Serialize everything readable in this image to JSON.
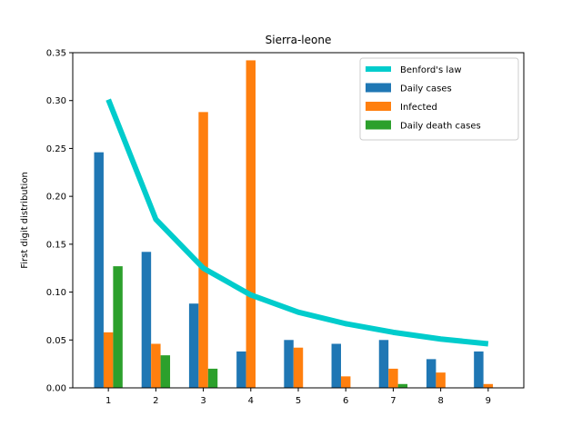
{
  "chart_data": {
    "type": "bar",
    "title": "Sierra-leone",
    "xlabel": "",
    "ylabel": "First digit distribution",
    "categories": [
      "1",
      "2",
      "3",
      "4",
      "5",
      "6",
      "7",
      "8",
      "9"
    ],
    "ylim": [
      0,
      0.35
    ],
    "yticks": [
      "0.00",
      "0.05",
      "0.10",
      "0.15",
      "0.20",
      "0.25",
      "0.30",
      "0.35"
    ],
    "grid": false,
    "legend_position": "top-right",
    "series": [
      {
        "name": "Daily cases",
        "kind": "bar",
        "color": "#1f77b4",
        "values": [
          0.246,
          0.142,
          0.088,
          0.038,
          0.05,
          0.046,
          0.05,
          0.03,
          0.038
        ]
      },
      {
        "name": "Infected",
        "kind": "bar",
        "color": "#ff7f0e",
        "values": [
          0.058,
          0.046,
          0.288,
          0.342,
          0.042,
          0.012,
          0.02,
          0.016,
          0.004
        ]
      },
      {
        "name": "Daily death cases",
        "kind": "bar",
        "color": "#2ca02c",
        "values": [
          0.127,
          0.034,
          0.02,
          0.0,
          0.0,
          0.0,
          0.004,
          0.0,
          0.0
        ]
      },
      {
        "name": "Benford's law",
        "kind": "line",
        "color": "#00cccc",
        "values": [
          0.301,
          0.176,
          0.125,
          0.097,
          0.079,
          0.067,
          0.058,
          0.051,
          0.046
        ]
      }
    ]
  }
}
